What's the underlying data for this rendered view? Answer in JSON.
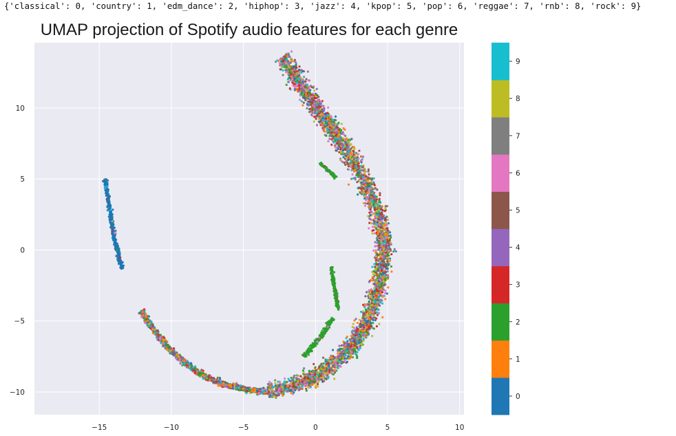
{
  "header": {
    "genre_mapping_text": "{'classical': 0, 'country': 1, 'edm_dance': 2, 'hiphop': 3, 'jazz': 4, 'kpop': 5, 'pop': 6, 'reggae': 7, 'rnb': 8, 'rock': 9}"
  },
  "chart_data": {
    "type": "scatter",
    "title": "UMAP projection of Spotify audio features for each genre",
    "xlabel": "",
    "ylabel": "",
    "xlim": [
      -19.5,
      10.3
    ],
    "ylim": [
      -11.6,
      14.6
    ],
    "xticks": [
      -15,
      -10,
      -5,
      0,
      5,
      10
    ],
    "yticks": [
      -10,
      -5,
      0,
      5,
      10
    ],
    "grid": true,
    "background": "#eaeaf2",
    "colorbar": {
      "ticks": [
        0,
        1,
        2,
        3,
        4,
        5,
        6,
        7,
        8,
        9
      ],
      "colors": [
        "#1f77b4",
        "#ff7f0e",
        "#2ca02c",
        "#d62728",
        "#9467bd",
        "#8c564b",
        "#e377c2",
        "#7f7f7f",
        "#bcbd22",
        "#17becf"
      ]
    },
    "clusters": [
      {
        "label": "classical arc",
        "dominant_class": 0,
        "mix": false,
        "path": [
          [
            -14.6,
            5.0
          ],
          [
            -14.3,
            3.0
          ],
          [
            -14.0,
            1.0
          ],
          [
            -13.7,
            -0.3
          ],
          [
            -13.4,
            -1.3
          ]
        ],
        "width": 0.12
      },
      {
        "label": "main arc",
        "dominant_class": null,
        "mix": true,
        "path": [
          [
            -2.3,
            13.6
          ],
          [
            -1.5,
            12.4
          ],
          [
            -0.6,
            11.0
          ],
          [
            0.5,
            9.4
          ],
          [
            1.6,
            7.9
          ],
          [
            2.6,
            6.3
          ],
          [
            3.4,
            4.8
          ],
          [
            4.1,
            3.2
          ],
          [
            4.6,
            1.6
          ],
          [
            4.8,
            0.2
          ],
          [
            4.6,
            -1.4
          ],
          [
            4.3,
            -3.0
          ],
          [
            3.8,
            -4.6
          ],
          [
            3.1,
            -6.0
          ],
          [
            2.0,
            -7.4
          ],
          [
            0.7,
            -8.5
          ],
          [
            -0.6,
            -9.2
          ],
          [
            -2.0,
            -9.7
          ],
          [
            -3.3,
            -10.0
          ]
        ],
        "width": 0.55
      },
      {
        "label": "lower arc",
        "dominant_class": null,
        "mix": true,
        "path": [
          [
            -12.1,
            -4.3
          ],
          [
            -11.3,
            -5.5
          ],
          [
            -10.2,
            -6.9
          ],
          [
            -9.1,
            -7.9
          ],
          [
            -7.9,
            -8.8
          ],
          [
            -6.6,
            -9.4
          ],
          [
            -5.3,
            -9.7
          ],
          [
            -4.3,
            -9.9
          ],
          [
            -3.3,
            -10.0
          ]
        ],
        "width": 0.18
      },
      {
        "label": "small arc upper",
        "dominant_class": 2,
        "mix": false,
        "path": [
          [
            0.3,
            6.1
          ],
          [
            0.9,
            5.6
          ],
          [
            1.4,
            5.1
          ]
        ],
        "width": 0.1
      },
      {
        "label": "vertical strand",
        "dominant_class": 2,
        "mix": false,
        "path": [
          [
            1.1,
            -1.2
          ],
          [
            1.3,
            -2.5
          ],
          [
            1.5,
            -3.8
          ],
          [
            1.6,
            -4.2
          ]
        ],
        "width": 0.09
      },
      {
        "label": "diagonal strand",
        "dominant_class": 2,
        "mix": false,
        "path": [
          [
            1.2,
            -4.8
          ],
          [
            0.6,
            -5.8
          ],
          [
            -0.3,
            -6.9
          ],
          [
            -0.8,
            -7.5
          ]
        ],
        "width": 0.15
      }
    ]
  }
}
